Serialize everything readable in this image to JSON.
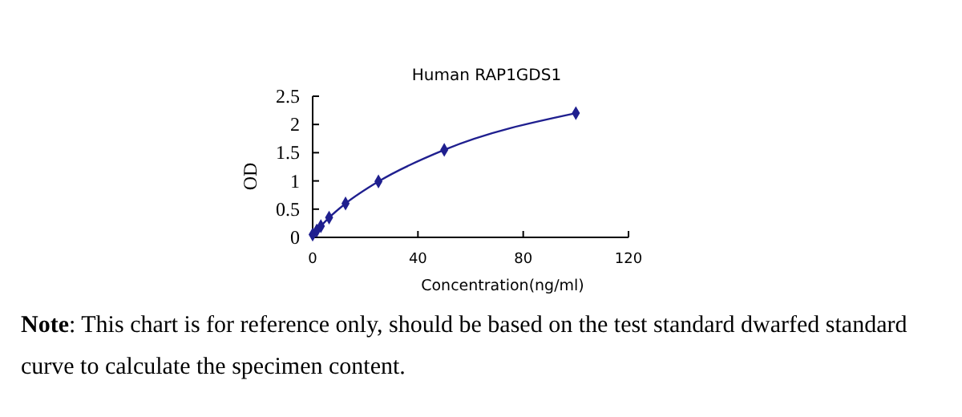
{
  "chart_data": {
    "type": "line",
    "title": "Human RAP1GDS1",
    "xlabel": "Concentration(ng/ml)",
    "ylabel": "OD",
    "x": [
      0,
      1.56,
      3.12,
      6.25,
      12.5,
      25,
      50,
      100
    ],
    "series": [
      {
        "color": "#1f1f8f",
        "values": [
          0.05,
          0.12,
          0.2,
          0.35,
          0.6,
          0.99,
          1.55,
          2.2
        ]
      }
    ],
    "xlim": [
      0,
      120
    ],
    "xticks": [
      0,
      40,
      80,
      120
    ],
    "ylim": [
      0,
      2.5
    ],
    "yticks": [
      0,
      0.5,
      1,
      1.5,
      2,
      2.5
    ],
    "marker": "diamond",
    "grid": false,
    "annotations": [
      "Note: This chart is for reference only, should be based on the test standard dwarfed standard curve to calculate the specimen content."
    ]
  }
}
